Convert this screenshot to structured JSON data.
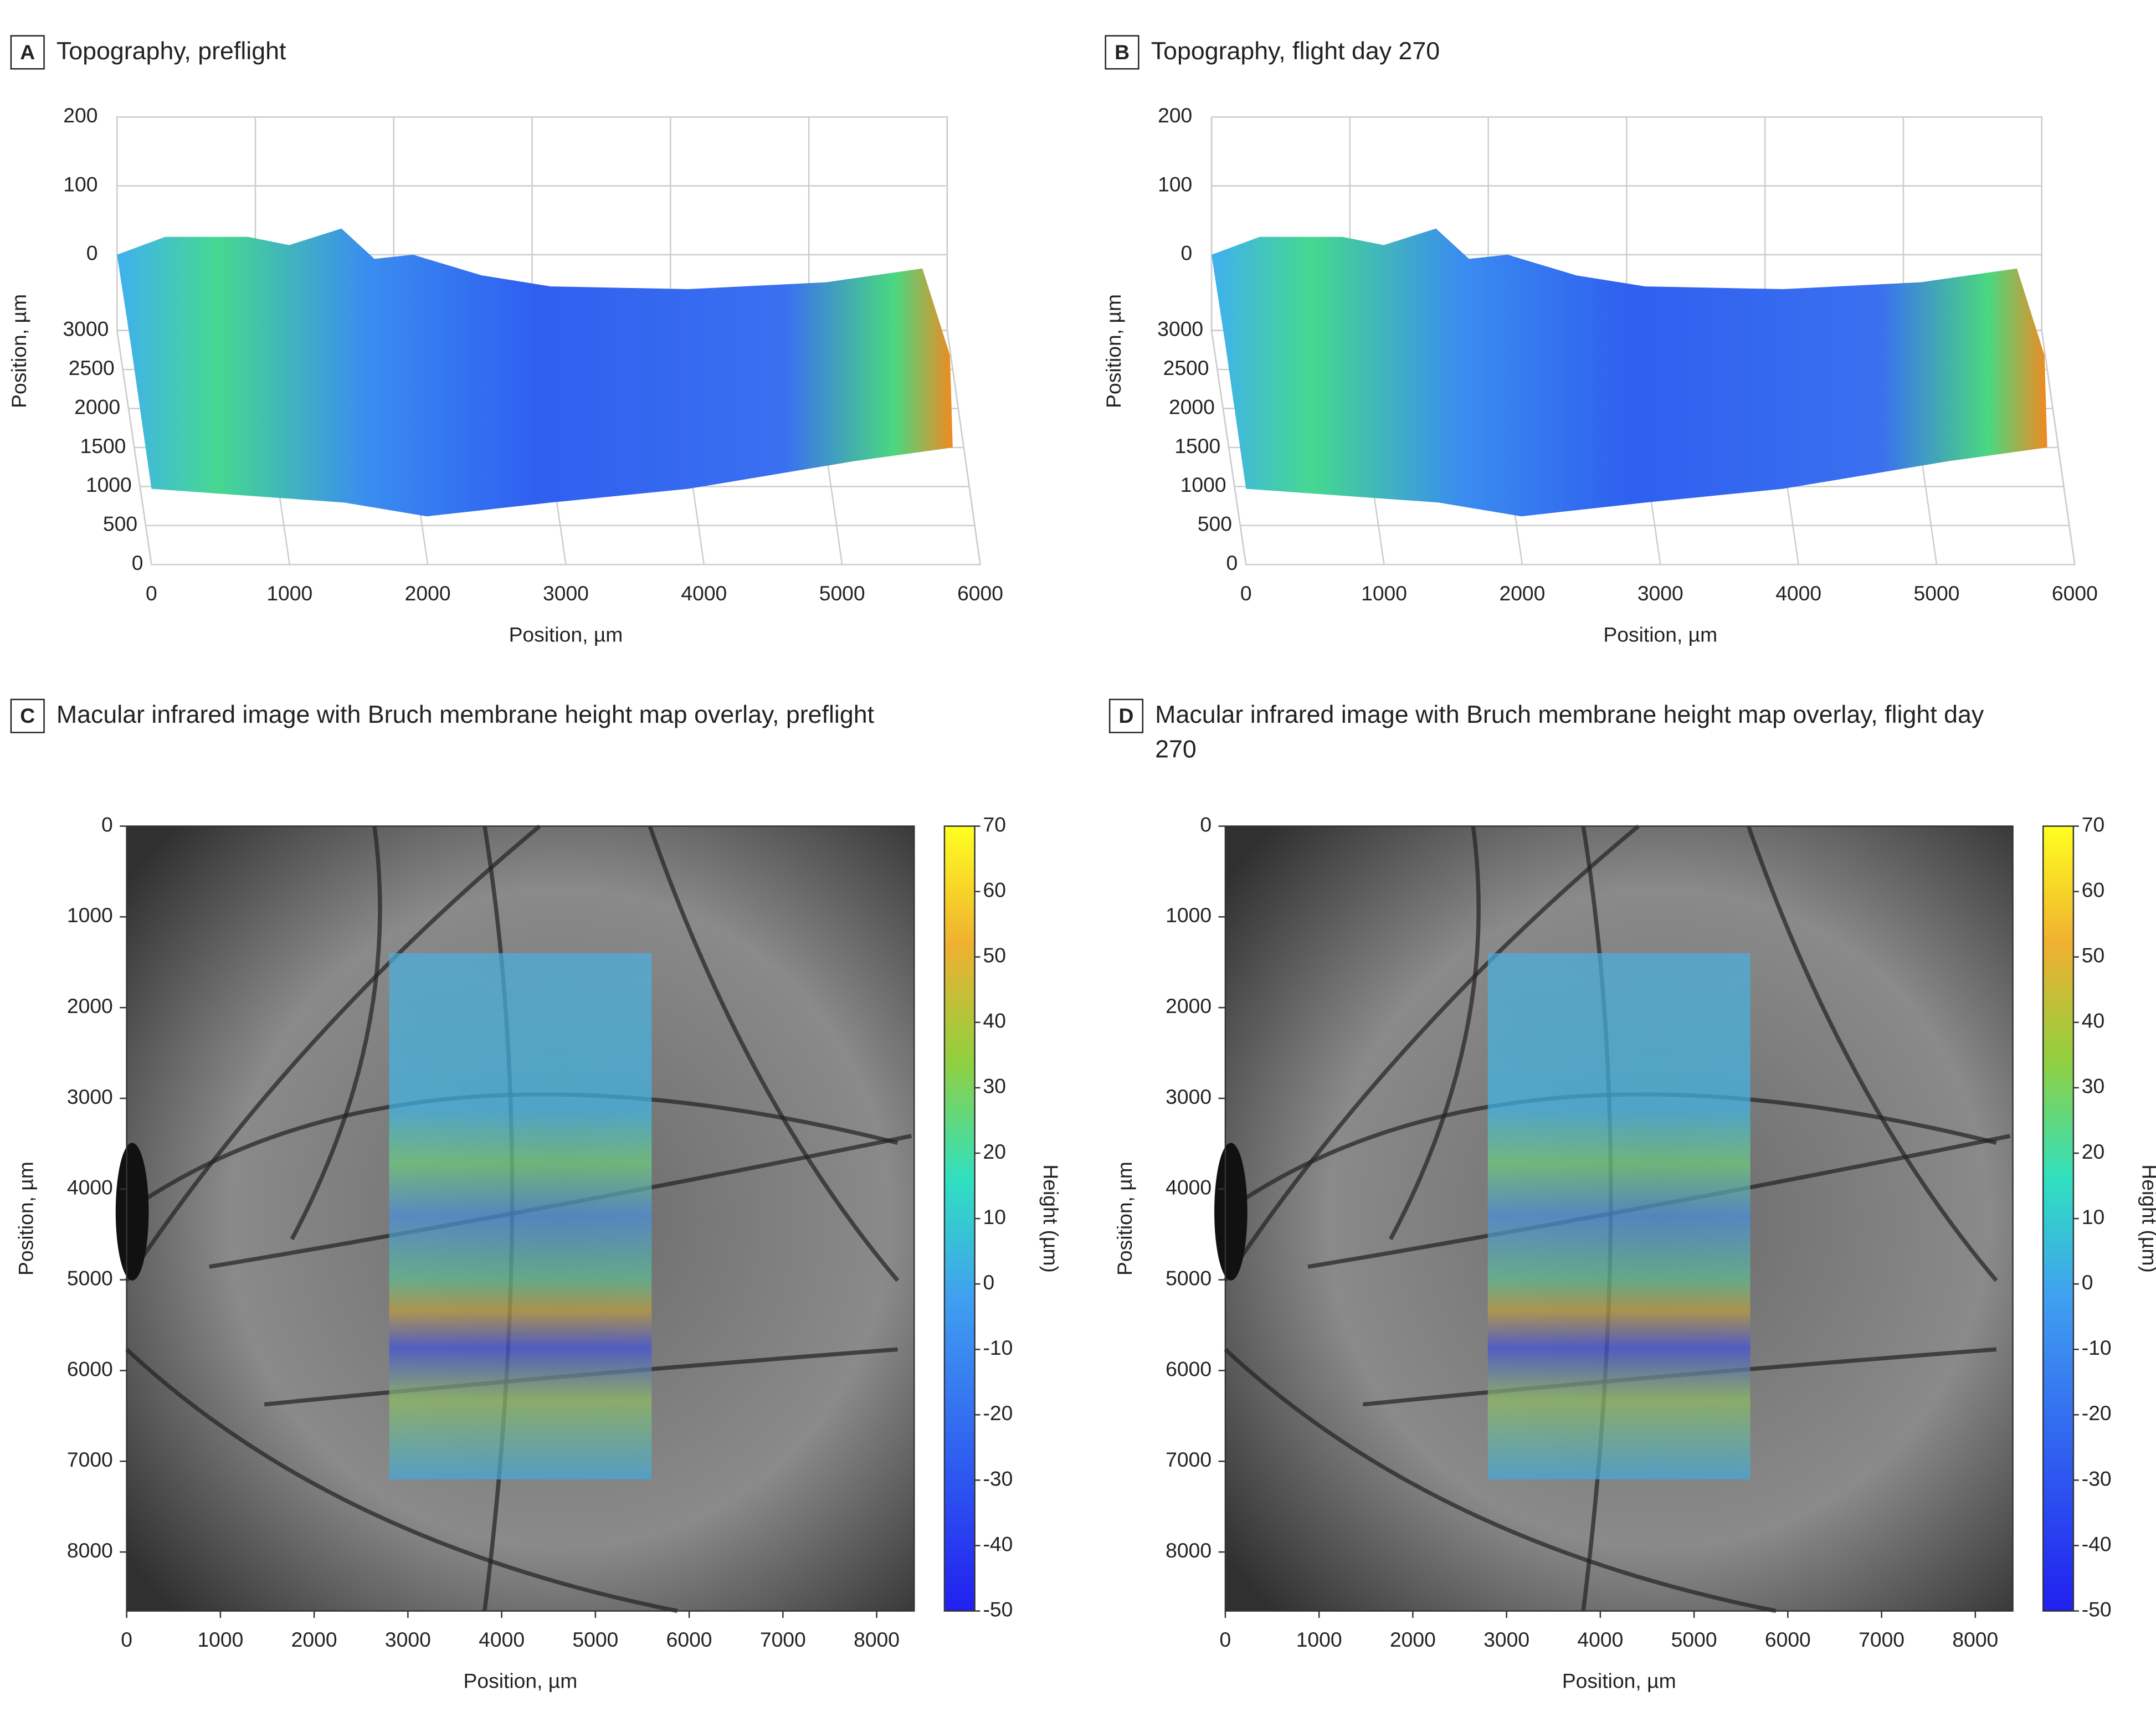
{
  "chart_data": [
    {
      "type": "surface",
      "panel": "A",
      "title": "Topography, preflight",
      "x_label": "Position, µm",
      "y_label": "Position, µm",
      "xlim": [
        0,
        6000
      ],
      "xticks": [
        0,
        1000,
        2000,
        3000,
        4000,
        5000,
        6000
      ],
      "ylim": [
        0,
        3000
      ],
      "yticks": [
        0,
        500,
        1000,
        1500,
        2000,
        2500,
        3000
      ],
      "zlim": [
        0,
        200
      ],
      "zticks": [
        0,
        100,
        200
      ]
    },
    {
      "type": "surface",
      "panel": "B",
      "title": "Topography, flight day 270",
      "x_label": "Position, µm",
      "y_label": "Position, µm",
      "xlim": [
        0,
        6000
      ],
      "xticks": [
        0,
        1000,
        2000,
        3000,
        4000,
        5000,
        6000
      ],
      "ylim": [
        0,
        3000
      ],
      "yticks": [
        0,
        500,
        1000,
        1500,
        2000,
        2500,
        3000
      ],
      "zlim": [
        0,
        200
      ],
      "zticks": [
        0,
        100,
        200
      ]
    },
    {
      "type": "heatmap",
      "panel": "C",
      "title": "Macular infrared image with Bruch membrane height map overlay, preflight",
      "x_label": "Position, µm",
      "y_label": "Position, µm",
      "xlim": [
        0,
        8400
      ],
      "xticks": [
        0,
        1000,
        2000,
        3000,
        4000,
        5000,
        6000,
        7000,
        8000
      ],
      "ylim": [
        0,
        8650
      ],
      "yticks": [
        0,
        1000,
        2000,
        3000,
        4000,
        5000,
        6000,
        7000,
        8000
      ],
      "overlay_xlim": [
        2800,
        5600
      ],
      "overlay_ylim": [
        1400,
        7200
      ],
      "colorbar_label": "Height (µm)",
      "clim": [
        -50,
        70
      ],
      "cticks": [
        -50,
        -40,
        -30,
        -20,
        -10,
        0,
        10,
        20,
        30,
        40,
        50,
        60,
        70
      ]
    },
    {
      "type": "heatmap",
      "panel": "D",
      "title": "Macular infrared image with Bruch membrane height map overlay, flight day 270",
      "x_label": "Position, µm",
      "y_label": "Position, µm",
      "xlim": [
        0,
        8400
      ],
      "xticks": [
        0,
        1000,
        2000,
        3000,
        4000,
        5000,
        6000,
        7000,
        8000
      ],
      "ylim": [
        0,
        8650
      ],
      "yticks": [
        0,
        1000,
        2000,
        3000,
        4000,
        5000,
        6000,
        7000,
        8000
      ],
      "overlay_xlim": [
        2800,
        5600
      ],
      "overlay_ylim": [
        1400,
        7200
      ],
      "colorbar_label": "Height (µm)",
      "clim": [
        -50,
        70
      ],
      "cticks": [
        -50,
        -40,
        -30,
        -20,
        -10,
        0,
        10,
        20,
        30,
        40,
        50,
        60,
        70
      ]
    }
  ]
}
